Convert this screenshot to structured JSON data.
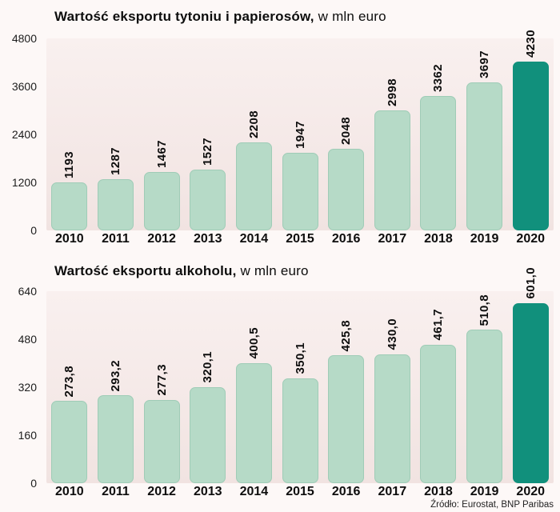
{
  "source_note": "Źródło: Eurostat, BNP Paribas",
  "colors": {
    "bar_fill": "#b6dac7",
    "bar_border": "#9fccb7",
    "bar_highlight": "#11907c",
    "plot_bg_top": "#f9f0ef",
    "plot_bg_bottom": "#f1e3e1",
    "page_bg": "#fdf8f7",
    "text": "#0d0d0d"
  },
  "chart_data": [
    {
      "type": "bar",
      "title": "Wartość eksportu tytoniu i papierosów,",
      "unit_label": "w mln euro",
      "categories": [
        "2010",
        "2011",
        "2012",
        "2013",
        "2014",
        "2015",
        "2016",
        "2017",
        "2018",
        "2019",
        "2020"
      ],
      "values": [
        1193,
        1287,
        1467,
        1527,
        2208,
        1947,
        2048,
        2998,
        3362,
        3697,
        4230
      ],
      "bar_labels": [
        "1193",
        "1287",
        "1467",
        "1527",
        "2208",
        "1947",
        "2048",
        "2998",
        "3362",
        "3697",
        "4230"
      ],
      "xlabel": "",
      "ylabel": "",
      "ylim": [
        0,
        4800
      ],
      "y_ticks": [
        "4800",
        "3600",
        "2400",
        "1200",
        "0"
      ],
      "highlight_index": 10,
      "highlight_category": "2020",
      "grid": false,
      "legend": "none"
    },
    {
      "type": "bar",
      "title": "Wartość eksportu alkoholu,",
      "unit_label": "w mln euro",
      "categories": [
        "2010",
        "2011",
        "2012",
        "2013",
        "2014",
        "2015",
        "2016",
        "2017",
        "2018",
        "2019",
        "2020"
      ],
      "values": [
        273.8,
        293.2,
        277.3,
        320.1,
        400.5,
        350.1,
        425.8,
        430.0,
        461.7,
        510.8,
        601.0
      ],
      "bar_labels": [
        "273,8",
        "293,2",
        "277,3",
        "320,1",
        "400,5",
        "350,1",
        "425,8",
        "430,0",
        "461,7",
        "510,8",
        "601,0"
      ],
      "xlabel": "",
      "ylabel": "",
      "ylim": [
        0,
        640
      ],
      "y_ticks": [
        "640",
        "480",
        "320",
        "160",
        "0"
      ],
      "highlight_index": 10,
      "highlight_category": "2020",
      "grid": false,
      "legend": "none"
    }
  ]
}
